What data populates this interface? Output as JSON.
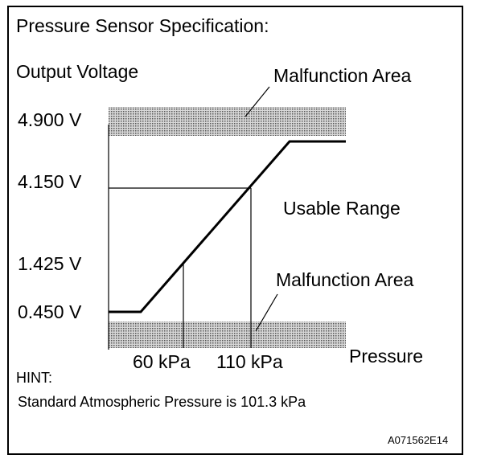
{
  "title": "Pressure Sensor Specification:",
  "y_axis_label": "Output Voltage",
  "x_axis_label": "Pressure",
  "voltage_labels": [
    "4.900 V",
    "4.150 V",
    "1.425 V",
    "0.450 V"
  ],
  "pressure_labels": [
    "60 kPa",
    "110 kPa"
  ],
  "regions": {
    "upper": "Malfunction Area",
    "middle": "Usable Range",
    "lower": "Malfunction Area"
  },
  "hint": {
    "heading": "HINT:",
    "text": "Standard Atmospheric Pressure is 101.3 kPa"
  },
  "figure_id": "A071562E14"
}
